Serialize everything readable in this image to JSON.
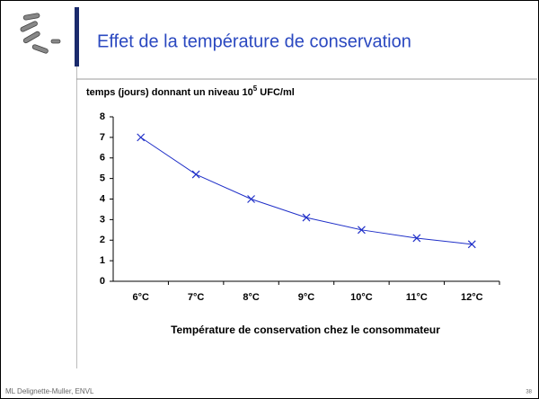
{
  "slide_title": "Effet de la température de conservation",
  "footer": "ML Delignette-Muller, ENVL",
  "page_number": "38",
  "chart_data": {
    "type": "line",
    "title_parts": [
      "temps (jours) donnant un niveau 10",
      "5",
      " UFC/ml"
    ],
    "x_label": "Température de conservation chez le consommateur",
    "categories": [
      "6°C",
      "7°C",
      "8°C",
      "9°C",
      "10°C",
      "11°C",
      "12°C"
    ],
    "series": [
      {
        "name": "temps",
        "color": "#1f2fc8",
        "values": [
          7,
          5.2,
          4,
          3.1,
          2.5,
          2.1,
          1.8
        ]
      }
    ],
    "ylim": [
      0,
      8
    ],
    "yticks": [
      0,
      1,
      2,
      3,
      4,
      5,
      6,
      7,
      8
    ],
    "grid": false,
    "marker": "x"
  }
}
